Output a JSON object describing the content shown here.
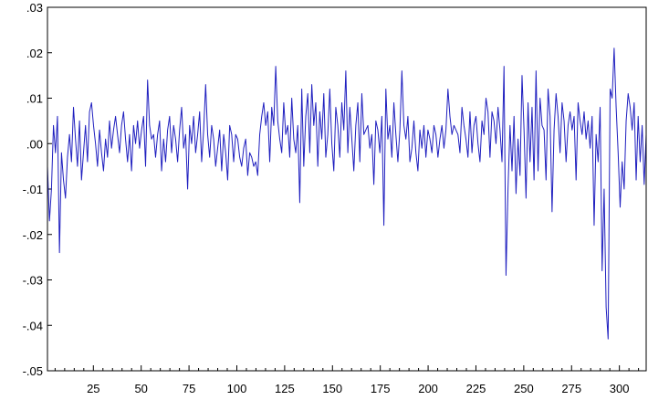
{
  "chart_data": {
    "type": "line",
    "title": "",
    "xlabel": "",
    "ylabel": "",
    "xlim": [
      1,
      314
    ],
    "ylim": [
      -0.05,
      0.03
    ],
    "x_ticks": [
      25,
      50,
      75,
      100,
      125,
      150,
      175,
      200,
      225,
      250,
      275,
      300
    ],
    "x_tick_labels": [
      "25",
      "50",
      "75",
      "100",
      "125",
      "150",
      "175",
      "200",
      "225",
      "250",
      "275",
      "300"
    ],
    "y_ticks": [
      0.03,
      0.02,
      0.01,
      0.0,
      -0.01,
      -0.02,
      -0.03,
      -0.04,
      -0.05
    ],
    "y_tick_labels": [
      ".03",
      ".02",
      ".01",
      ".00",
      "-.01",
      "-.02",
      "-.03",
      "-.04",
      "-.05"
    ],
    "grid": false,
    "legend": "none",
    "line_color": "#1f1fbf",
    "series": [
      {
        "values": [
          -0.005,
          -0.017,
          -0.01,
          0.004,
          -0.002,
          0.006,
          -0.024,
          -0.002,
          -0.008,
          -0.012,
          -0.003,
          0.002,
          -0.004,
          0.008,
          0.001,
          -0.005,
          0.005,
          -0.008,
          -0.002,
          0.004,
          -0.004,
          0.007,
          0.009,
          0.004,
          0.0,
          -0.005,
          0.003,
          -0.002,
          -0.006,
          0.001,
          -0.003,
          0.005,
          -0.001,
          0.003,
          0.006,
          0.002,
          -0.002,
          0.004,
          0.007,
          0.001,
          -0.004,
          0.002,
          -0.006,
          0.004,
          0.0,
          0.005,
          -0.001,
          0.003,
          0.006,
          -0.005,
          0.014,
          0.004,
          0.001,
          0.002,
          -0.003,
          0.002,
          0.005,
          -0.006,
          0.001,
          -0.004,
          0.003,
          0.006,
          -0.002,
          0.004,
          0.001,
          -0.004,
          0.003,
          0.008,
          -0.001,
          0.002,
          -0.01,
          0.004,
          0.0,
          0.006,
          -0.002,
          0.002,
          0.007,
          -0.004,
          0.003,
          0.013,
          0.002,
          -0.003,
          0.004,
          0.001,
          -0.005,
          -0.001,
          0.003,
          -0.006,
          0.002,
          -0.002,
          -0.008,
          0.004,
          0.002,
          -0.004,
          0.002,
          0.001,
          -0.003,
          -0.005,
          -0.001,
          0.001,
          -0.007,
          -0.002,
          -0.003,
          -0.005,
          -0.004,
          -0.007,
          0.002,
          0.006,
          0.009,
          0.004,
          0.007,
          -0.004,
          0.008,
          0.004,
          0.017,
          0.005,
          0.001,
          -0.002,
          0.009,
          0.002,
          0.004,
          -0.003,
          0.01,
          0.001,
          -0.002,
          0.004,
          -0.013,
          0.012,
          -0.005,
          0.006,
          0.011,
          -0.002,
          0.013,
          0.004,
          0.009,
          -0.005,
          0.007,
          0.001,
          0.011,
          -0.003,
          0.002,
          0.012,
          0.0,
          -0.006,
          0.008,
          0.004,
          -0.003,
          0.009,
          0.003,
          0.016,
          -0.002,
          0.008,
          0.001,
          -0.006,
          0.004,
          0.009,
          -0.004,
          0.011,
          0.002,
          0.003,
          0.004,
          -0.001,
          0.002,
          -0.009,
          0.005,
          0.003,
          -0.002,
          0.006,
          -0.018,
          0.012,
          0.001,
          0.004,
          -0.003,
          0.009,
          0.002,
          -0.004,
          0.003,
          0.016,
          0.004,
          0.001,
          0.006,
          -0.004,
          -0.001,
          0.005,
          -0.002,
          -0.006,
          0.003,
          -0.001,
          0.004,
          -0.003,
          0.003,
          0.001,
          -0.002,
          0.004,
          0.002,
          -0.003,
          0.001,
          0.004,
          -0.001,
          0.003,
          0.012,
          0.006,
          0.002,
          0.004,
          0.003,
          0.002,
          -0.002,
          0.008,
          0.004,
          0.001,
          -0.003,
          0.007,
          -0.002,
          0.004,
          0.006,
          0.0,
          -0.004,
          0.005,
          0.002,
          0.01,
          0.007,
          -0.003,
          0.007,
          0.005,
          0.0,
          0.008,
          0.003,
          -0.004,
          0.017,
          -0.029,
          -0.01,
          0.004,
          -0.006,
          0.006,
          -0.011,
          0.001,
          -0.007,
          0.015,
          0.003,
          -0.012,
          0.009,
          -0.004,
          0.008,
          -0.008,
          0.016,
          -0.006,
          0.01,
          0.004,
          0.003,
          -0.008,
          0.012,
          0.006,
          -0.015,
          0.003,
          0.011,
          0.006,
          -0.002,
          0.009,
          0.005,
          -0.004,
          0.004,
          0.007,
          0.003,
          0.006,
          -0.008,
          0.009,
          0.005,
          0.002,
          0.007,
          0.001,
          0.005,
          -0.001,
          0.006,
          -0.018,
          0.002,
          -0.004,
          0.008,
          -0.028,
          -0.01,
          -0.036,
          -0.043,
          0.012,
          0.01,
          0.021,
          0.008,
          -0.002,
          -0.014,
          -0.004,
          -0.01,
          0.005,
          0.011,
          0.008,
          0.003,
          0.009,
          -0.008,
          0.006,
          -0.004,
          0.004,
          -0.009,
          0.002
        ]
      }
    ]
  }
}
